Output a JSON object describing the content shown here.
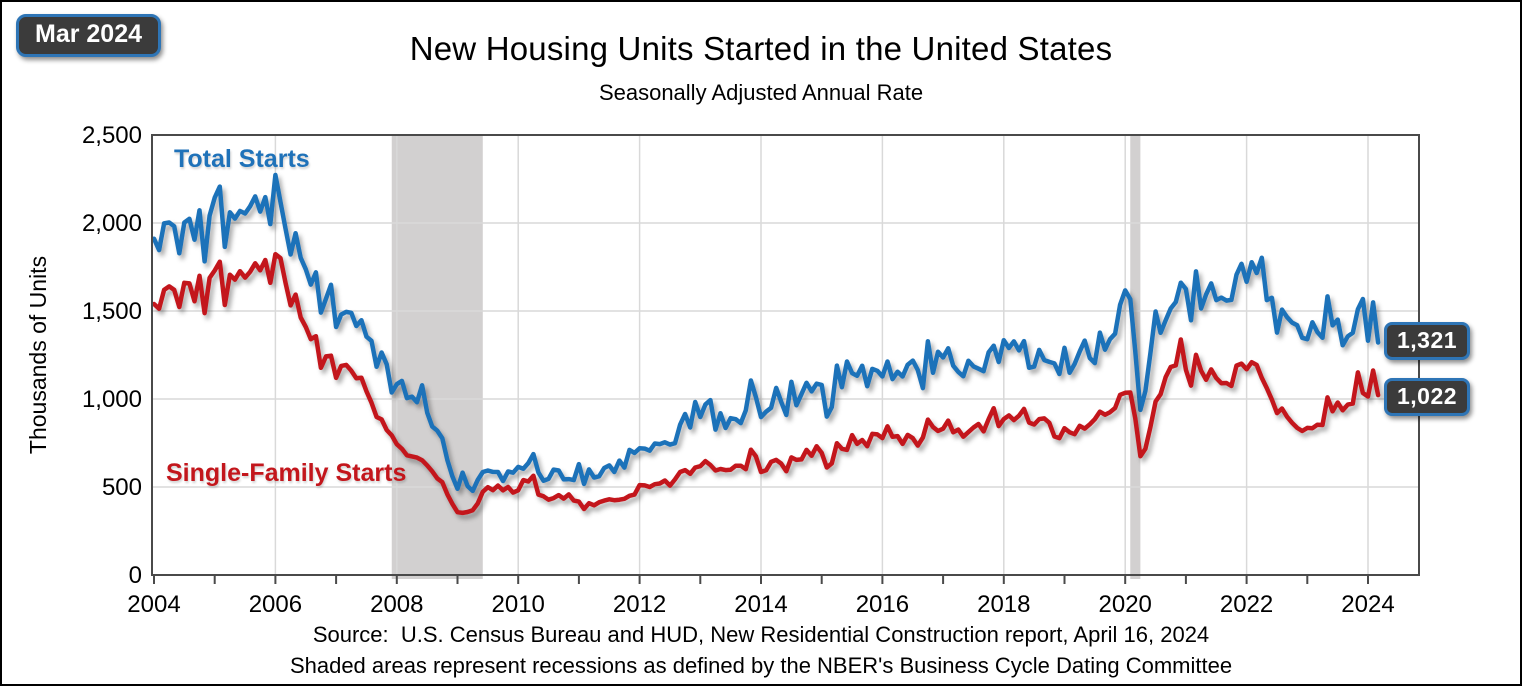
{
  "stamp": "Mar 2024",
  "source": {
    "line1": "Source:  U.S. Census Bureau and HUD, New Residential Construction report, April 16, 2024",
    "line2": "Shaded areas represent recessions as defined by the NBER's Business Cycle Dating Committee"
  },
  "colors": {
    "total": "#1f72b9",
    "single_family": "#c3161c",
    "recession_band": "#d2d0d0",
    "grid": "#d9d9d9",
    "axis": "#4a4a4a",
    "badge_bg": "#3b3b3b",
    "badge_border": "#2e75b6"
  },
  "chart_data": {
    "type": "line",
    "title": "New Housing Units Started in the United States",
    "subtitle": "Seasonally Adjusted Annual Rate",
    "ylabel": "Thousands of Units",
    "ylim": [
      0,
      2500
    ],
    "y_ticks": [
      "0",
      "500",
      "1,000",
      "1,500",
      "2,000",
      "2,500"
    ],
    "x_ticks": [
      "2004",
      "2006",
      "2008",
      "2010",
      "2012",
      "2014",
      "2016",
      "2018",
      "2020",
      "2022",
      "2024"
    ],
    "x_start": "2004-01",
    "x_end": "2024-03",
    "grid": true,
    "legend_position": "inline-labels",
    "end_labels": [
      "1,321",
      "1,022"
    ],
    "recessions": [
      {
        "start": "2007-12",
        "end": "2009-06"
      },
      {
        "start": "2020-02",
        "end": "2020-04"
      }
    ],
    "series": [
      {
        "name": "Total Starts",
        "color": "#1f72b9",
        "values": [
          1911,
          1846,
          1998,
          2003,
          1981,
          1828,
          2002,
          2024,
          1905,
          2072,
          1782,
          2042,
          2144,
          2207,
          1864,
          2061,
          2025,
          2068,
          2054,
          2095,
          2151,
          2065,
          2147,
          1994,
          2273,
          2119,
          1969,
          1821,
          1942,
          1802,
          1737,
          1650,
          1720,
          1491,
          1570,
          1649,
          1409,
          1480,
          1495,
          1490,
          1415,
          1448,
          1354,
          1330,
          1183,
          1264,
          1197,
          1037,
          1084,
          1103,
          1005,
          1013,
          982,
          1078,
          923,
          844,
          820,
          777,
          652,
          560,
          490,
          582,
          505,
          478,
          540,
          585,
          594,
          586,
          585,
          534,
          588,
          581,
          614,
          604,
          636,
          687,
          583,
          536,
          546,
          599,
          594,
          543,
          545,
          539,
          630,
          517,
          600,
          554,
          561,
          608,
          623,
          585,
          650,
          610,
          711,
          694,
          720,
          718,
          706,
          747,
          744,
          754,
          741,
          749,
          854,
          915,
          838,
          983,
          898,
          969,
          994,
          826,
          919,
          835,
          891,
          885,
          863,
          936,
          1105,
          1010,
          897,
          928,
          950,
          1063,
          984,
          909,
          1098,
          964,
          1028,
          1092,
          1043,
          1087,
          1080,
          900,
          954,
          1190,
          1067,
          1213,
          1147,
          1132,
          1189,
          1073,
          1171,
          1160,
          1128,
          1213,
          1113,
          1155,
          1128,
          1195,
          1218,
          1164,
          1062,
          1328,
          1149,
          1268,
          1236,
          1288,
          1189,
          1154,
          1129,
          1217,
          1185,
          1172,
          1158,
          1265,
          1303,
          1210,
          1334,
          1290,
          1327,
          1276,
          1329,
          1177,
          1184,
          1279,
          1221,
          1211,
          1202,
          1142,
          1291,
          1149,
          1199,
          1270,
          1332,
          1233,
          1204,
          1377,
          1280,
          1340,
          1371,
          1536,
          1617,
          1567,
          1269,
          938,
          1046,
          1265,
          1497,
          1376,
          1448,
          1514,
          1551,
          1661,
          1625,
          1447,
          1725,
          1514,
          1594,
          1657,
          1562,
          1576,
          1559,
          1563,
          1706,
          1768,
          1666,
          1777,
          1716,
          1803,
          1562,
          1575,
          1377,
          1508,
          1465,
          1434,
          1419,
          1348,
          1340,
          1436,
          1380,
          1348,
          1583,
          1418,
          1451,
          1305,
          1356,
          1376,
          1510,
          1568,
          1331,
          1549,
          1321
        ]
      },
      {
        "name": "Single-Family Starts",
        "color": "#c3161c",
        "values": [
          1540,
          1513,
          1620,
          1640,
          1620,
          1523,
          1660,
          1657,
          1555,
          1700,
          1488,
          1688,
          1730,
          1780,
          1534,
          1706,
          1678,
          1726,
          1690,
          1723,
          1771,
          1731,
          1790,
          1660,
          1823,
          1800,
          1661,
          1532,
          1593,
          1463,
          1409,
          1340,
          1357,
          1177,
          1242,
          1246,
          1120,
          1188,
          1194,
          1161,
          1118,
          1121,
          1043,
          979,
          898,
          884,
          824,
          794,
          743,
          717,
          680,
          674,
          667,
          652,
          623,
          589,
          549,
          527,
          458,
          404,
          357,
          353,
          358,
          368,
          406,
          473,
          499,
          482,
          508,
          481,
          500,
          468,
          481,
          539,
          531,
          564,
          457,
          447,
          428,
          437,
          454,
          434,
          458,
          423,
          417,
          375,
          408,
          396,
          413,
          423,
          430,
          425,
          428,
          433,
          450,
          457,
          511,
          509,
          500,
          516,
          520,
          537,
          508,
          543,
          585,
          596,
          575,
          611,
          618,
          647,
          625,
          594,
          602,
          596,
          598,
          621,
          621,
          601,
          712,
          674,
          585,
          595,
          643,
          654,
          633,
          590,
          668,
          654,
          657,
          711,
          677,
          731,
          694,
          611,
          634,
          749,
          717,
          711,
          795,
          745,
          767,
          732,
          802,
          799,
          778,
          845,
          785,
          789,
          745,
          796,
          777,
          735,
          781,
          883,
          841,
          818,
          831,
          877,
          811,
          826,
          786,
          812,
          838,
          858,
          816,
          885,
          948,
          846,
          886,
          907,
          880,
          905,
          944,
          866,
          855,
          886,
          890,
          865,
          787,
          778,
          834,
          811,
          800,
          848,
          832,
          856,
          885,
          928,
          911,
          925,
          949,
          1024,
          1035,
          1037,
          889,
          675,
          717,
          843,
          986,
          1027,
          1125,
          1182,
          1191,
          1338,
          1166,
          1076,
          1251,
          1161,
          1109,
          1168,
          1119,
          1090,
          1091,
          1074,
          1190,
          1201,
          1169,
          1209,
          1193,
          1120,
          1062,
          996,
          920,
          946,
          899,
          865,
          836,
          818,
          836,
          834,
          854,
          852,
          1009,
          930,
          980,
          936,
          968,
          974,
          1151,
          1034,
          1014,
          1162,
          1022
        ]
      }
    ]
  }
}
